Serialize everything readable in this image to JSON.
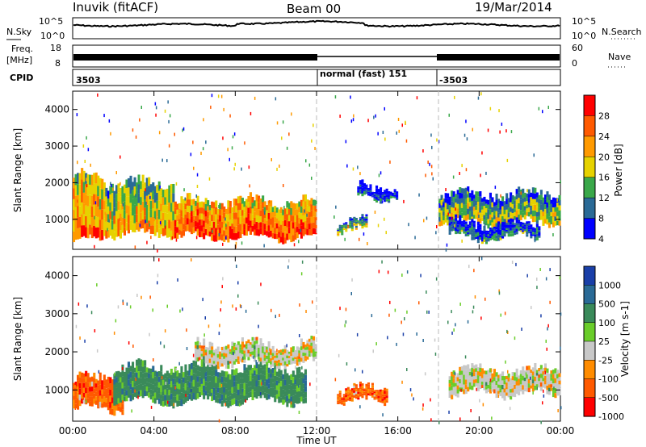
{
  "header": {
    "station": "Inuvik (fitACF)",
    "beam": "Beam 00",
    "date": "19/Mar/2014"
  },
  "panels": {
    "nsky_label": "N.Sky",
    "nsearch_label": "N.Search",
    "noise_ticks": [
      "10^5",
      "10^0"
    ],
    "freq_label_1": "Freq.",
    "freq_label_2": "[MHz]",
    "freq_ticks": [
      "18",
      "8"
    ],
    "nave_label": "Nave",
    "nave_ticks": [
      "60",
      "0"
    ],
    "cpid_label": "CPID",
    "cpid_segments": [
      "3503",
      "normal (fast) 151",
      "-3503"
    ]
  },
  "chart_data": [
    {
      "type": "heatmap",
      "name": "power",
      "ylabel": "Slant Range [km]",
      "xlabel": "",
      "x_ticks": [
        "00:00",
        "04:00",
        "08:00",
        "12:00",
        "16:00",
        "20:00",
        "00:00"
      ],
      "y_ticks": [
        "1000",
        "2000",
        "3000",
        "4000"
      ],
      "ylim": [
        180,
        4500
      ],
      "colorbar": {
        "label": "Power [dB]",
        "ticks": [
          "28",
          "24",
          "20",
          "16",
          "12",
          "8",
          "4"
        ],
        "colors": [
          "#ff0000",
          "#ff5a00",
          "#ff9a00",
          "#e6d200",
          "#3aa84a",
          "#2a6a96",
          "#0000ff"
        ]
      },
      "bands": [
        {
          "start_h": 0.0,
          "end_h": 1.5,
          "low_km": 400,
          "high_km": 2200,
          "level": 24
        },
        {
          "start_h": 1.5,
          "end_h": 5.0,
          "low_km": 600,
          "high_km": 2000,
          "level": 20
        },
        {
          "start_h": 5.0,
          "end_h": 12.0,
          "low_km": 500,
          "high_km": 1500,
          "level": 26
        },
        {
          "start_h": 13.0,
          "end_h": 14.5,
          "low_km": 700,
          "high_km": 950,
          "level": 16
        },
        {
          "start_h": 14.0,
          "end_h": 16.0,
          "low_km": 1600,
          "high_km": 1900,
          "level": 8
        },
        {
          "start_h": 18.0,
          "end_h": 24.0,
          "low_km": 900,
          "high_km": 1700,
          "level": 16
        },
        {
          "start_h": 18.5,
          "end_h": 23.0,
          "low_km": 500,
          "high_km": 900,
          "level": 10
        }
      ]
    },
    {
      "type": "heatmap",
      "name": "velocity",
      "ylabel": "Slant Range [km]",
      "xlabel": "Time UT",
      "x_ticks": [
        "00:00",
        "04:00",
        "08:00",
        "12:00",
        "16:00",
        "20:00",
        "00:00"
      ],
      "y_ticks": [
        "1000",
        "2000",
        "3000",
        "4000"
      ],
      "ylim": [
        180,
        4500
      ],
      "colorbar": {
        "label": "Velocity [m s-1]",
        "ticks": [
          "1000",
          "500",
          "100",
          "25",
          "-25",
          "-100",
          "-500",
          "-1000"
        ],
        "colors": [
          "#1a3fa8",
          "#2a6a96",
          "#3a8a5a",
          "#6acd2a",
          "#c8c8c8",
          "#ff8c00",
          "#ff5a00",
          "#ff0000"
        ]
      },
      "bands": [
        {
          "start_h": 0.0,
          "end_h": 2.5,
          "low_km": 500,
          "high_km": 1300,
          "velocity": -100
        },
        {
          "start_h": 2.0,
          "end_h": 11.5,
          "low_km": 700,
          "high_km": 1600,
          "velocity": 100
        },
        {
          "start_h": 6.0,
          "end_h": 12.0,
          "low_km": 1700,
          "high_km": 2200,
          "velocity": 0
        },
        {
          "start_h": 13.0,
          "end_h": 15.5,
          "low_km": 700,
          "high_km": 1000,
          "velocity": -100
        },
        {
          "start_h": 18.5,
          "end_h": 24.0,
          "low_km": 900,
          "high_km": 1500,
          "velocity": 0
        }
      ]
    }
  ]
}
